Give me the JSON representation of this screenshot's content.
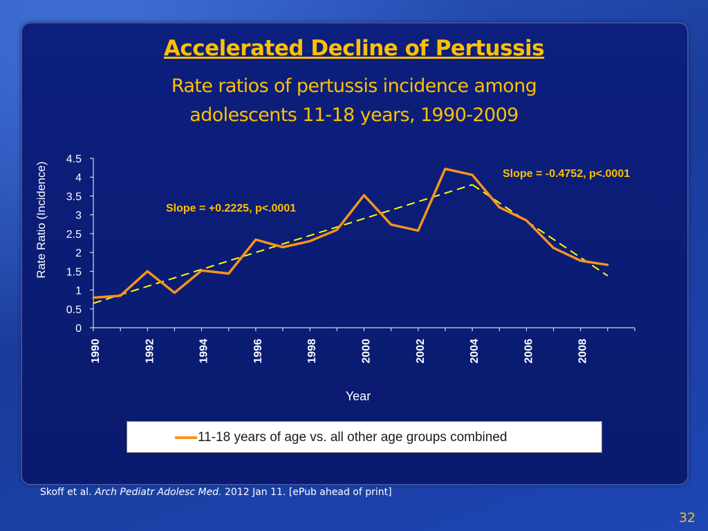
{
  "slide": {
    "title": "Accelerated Decline of Pertussis",
    "subtitle_line1": "Rate ratios of pertussis incidence among",
    "subtitle_line2": "adolescents 11-18 years, 1990-2009",
    "source_authors": "Skoff et al. ",
    "source_journal": "Arch Pediatr Adolesc Med.",
    "source_rest": " 2012 Jan 11. [ePub ahead of print]",
    "page_number": "32",
    "colors": {
      "title": "#ffc000",
      "series": "#f7941d",
      "trend": "#ffff00",
      "panel": "#0c1f7d"
    }
  },
  "chart_data": {
    "type": "line",
    "xlabel": "Year",
    "ylabel": "Rate Ratio (Incidence)",
    "ylim": [
      0,
      4.5
    ],
    "yticks": [
      "0",
      "0.5",
      "1",
      "1.5",
      "2",
      "2.5",
      "3",
      "3.5",
      "4",
      "4.5"
    ],
    "xticks": [
      "1990",
      "1992",
      "1994",
      "1996",
      "1998",
      "2000",
      "2002",
      "2004",
      "2006",
      "2008"
    ],
    "x": [
      1990,
      1991,
      1992,
      1993,
      1994,
      1995,
      1996,
      1997,
      1998,
      1999,
      2000,
      2001,
      2002,
      2003,
      2004,
      2005,
      2006,
      2007,
      2008,
      2009
    ],
    "series": [
      {
        "name": "11-18 years of age vs. all other age groups combined",
        "values": [
          0.8,
          0.85,
          1.5,
          0.93,
          1.52,
          1.44,
          2.34,
          2.14,
          2.3,
          2.6,
          3.52,
          2.74,
          2.58,
          4.22,
          4.06,
          3.2,
          2.85,
          2.12,
          1.78,
          1.67
        ]
      }
    ],
    "trendlines": [
      {
        "label": "Slope = +0.2225, p<.0001",
        "x": [
          1990,
          2004
        ],
        "y": [
          0.65,
          3.8
        ]
      },
      {
        "label": "Slope = -0.4752, p<.0001",
        "x": [
          2004,
          2009
        ],
        "y": [
          3.8,
          1.38
        ]
      }
    ],
    "legend_position": "bottom",
    "grid": false
  }
}
